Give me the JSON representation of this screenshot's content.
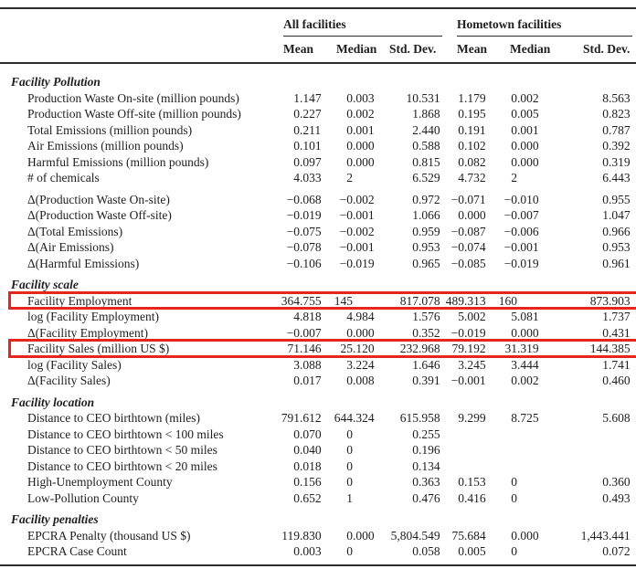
{
  "table": {
    "highlight_color": "#e6251c",
    "col_groups": [
      {
        "label": "All facilities"
      },
      {
        "label": "Hometown facilities"
      }
    ],
    "sub_headers": [
      "Mean",
      "Median",
      "Std. Dev.",
      "Mean",
      "Median",
      "Std. Dev."
    ],
    "blocks": [
      {
        "title": "Facility Pollution",
        "rows": [
          {
            "label": "Production Waste On-site (million pounds)",
            "values": [
              "1.147",
              "0.003",
              "10.531",
              "1.179",
              "0.002",
              "8.563"
            ]
          },
          {
            "label": "Production Waste Off-site (million pounds)",
            "values": [
              "0.227",
              "0.002",
              "1.868",
              "0.195",
              "0.005",
              "0.823"
            ]
          },
          {
            "label": "Total Emissions (million pounds)",
            "values": [
              "0.211",
              "0.001",
              "2.440",
              "0.191",
              "0.001",
              "0.787"
            ]
          },
          {
            "label": "Air Emissions (million pounds)",
            "values": [
              "0.101",
              "0.000",
              "0.588",
              "0.102",
              "0.000",
              "0.392"
            ]
          },
          {
            "label": "Harmful Emissions (million pounds)",
            "values": [
              "0.097",
              "0.000",
              "0.815",
              "0.082",
              "0.000",
              "0.319"
            ]
          },
          {
            "label": "# of chemicals",
            "values": [
              "4.033",
              "2",
              "6.529",
              "4.732",
              "2",
              "6.443"
            ]
          }
        ]
      },
      {
        "title": null,
        "rows": [
          {
            "label": "Δ(Production Waste On-site)",
            "values": [
              "−0.068",
              "−0.002",
              "0.972",
              "−0.071",
              "−0.010",
              "0.955"
            ]
          },
          {
            "label": "Δ(Production Waste Off-site)",
            "values": [
              "−0.019",
              "−0.001",
              "1.066",
              "0.000",
              "−0.007",
              "1.047"
            ]
          },
          {
            "label": "Δ(Total Emissions)",
            "values": [
              "−0.075",
              "−0.002",
              "0.959",
              "−0.087",
              "−0.006",
              "0.966"
            ]
          },
          {
            "label": "Δ(Air Emissions)",
            "values": [
              "−0.078",
              "−0.001",
              "0.953",
              "−0.074",
              "−0.001",
              "0.953"
            ]
          },
          {
            "label": "Δ(Harmful Emissions)",
            "values": [
              "−0.106",
              "−0.019",
              "0.965",
              "−0.085",
              "−0.019",
              "0.961"
            ]
          }
        ]
      },
      {
        "title": "Facility scale",
        "rows": [
          {
            "label": "Facility Employment",
            "values": [
              "364.755",
              "145",
              "817.078",
              "489.313",
              "160",
              "873.903"
            ],
            "highlight": true
          },
          {
            "label": "log (Facility Employment)",
            "values": [
              "4.818",
              "4.984",
              "1.576",
              "5.002",
              "5.081",
              "1.737"
            ]
          },
          {
            "label": "Δ(Facility Employment)",
            "values": [
              "−0.007",
              "0.000",
              "0.352",
              "−0.019",
              "0.000",
              "0.431"
            ]
          },
          {
            "label": "Facility Sales (million US $)",
            "values": [
              "71.146",
              "25.120",
              "232.968",
              "79.192",
              "31.319",
              "144.385"
            ],
            "highlight": true
          },
          {
            "label": "log (Facility Sales)",
            "values": [
              "3.088",
              "3.224",
              "1.646",
              "3.245",
              "3.444",
              "1.741"
            ]
          },
          {
            "label": "Δ(Facility Sales)",
            "values": [
              "0.017",
              "0.008",
              "0.391",
              "−0.001",
              "0.002",
              "0.460"
            ]
          }
        ]
      },
      {
        "title": "Facility location",
        "rows": [
          {
            "label": "Distance to CEO birthtown (miles)",
            "values": [
              "791.612",
              "644.324",
              "615.958",
              "9.299",
              "8.725",
              "5.608"
            ]
          },
          {
            "label": "Distance to CEO birthtown < 100 miles",
            "values": [
              "0.070",
              "0",
              "0.255",
              "",
              "",
              ""
            ]
          },
          {
            "label": "Distance to CEO birthtown < 50 miles",
            "values": [
              "0.040",
              "0",
              "0.196",
              "",
              "",
              ""
            ]
          },
          {
            "label": "Distance to CEO birthtown < 20 miles",
            "values": [
              "0.018",
              "0",
              "0.134",
              "",
              "",
              ""
            ]
          },
          {
            "label": "High-Unemployment County",
            "values": [
              "0.156",
              "0",
              "0.363",
              "0.153",
              "0",
              "0.360"
            ]
          },
          {
            "label": "Low-Pollution County",
            "values": [
              "0.652",
              "1",
              "0.476",
              "0.416",
              "0",
              "0.493"
            ]
          }
        ]
      },
      {
        "title": "Facility penalties",
        "rows": [
          {
            "label": "EPCRA Penalty (thousand US $)",
            "values": [
              "119.830",
              "0.000",
              "5,804.549",
              "75.684",
              "0.000",
              "1,443.441"
            ]
          },
          {
            "label": "EPCRA Case Count",
            "values": [
              "0.003",
              "0",
              "0.058",
              "0.005",
              "0",
              "0.072"
            ]
          }
        ]
      }
    ]
  }
}
